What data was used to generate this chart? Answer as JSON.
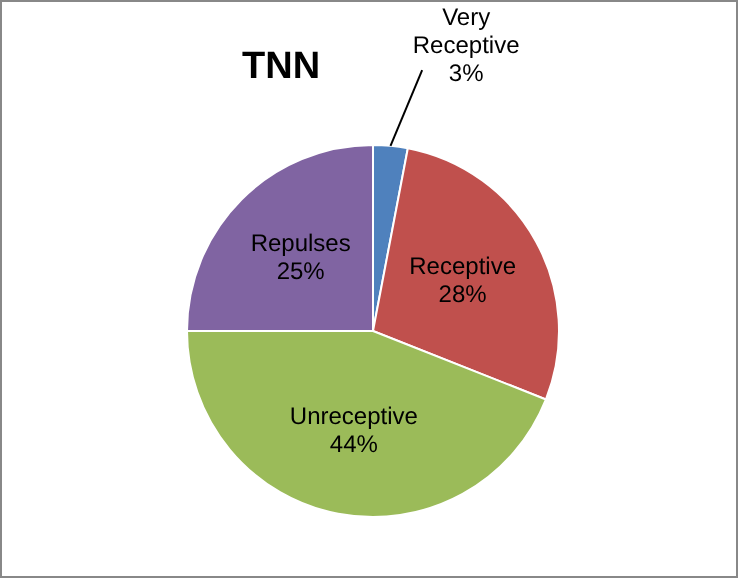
{
  "chart_data": {
    "type": "pie",
    "title": "TNN",
    "categories": [
      "Very Receptive",
      "Receptive",
      "Unreceptive",
      "Repulses"
    ],
    "values": [
      3,
      28,
      44,
      25
    ],
    "colors": [
      "#4f81bd",
      "#c0504d",
      "#9bbb59",
      "#8064a2"
    ],
    "value_labels": [
      "3%",
      "28%",
      "44%",
      "25%"
    ],
    "legend": false
  }
}
